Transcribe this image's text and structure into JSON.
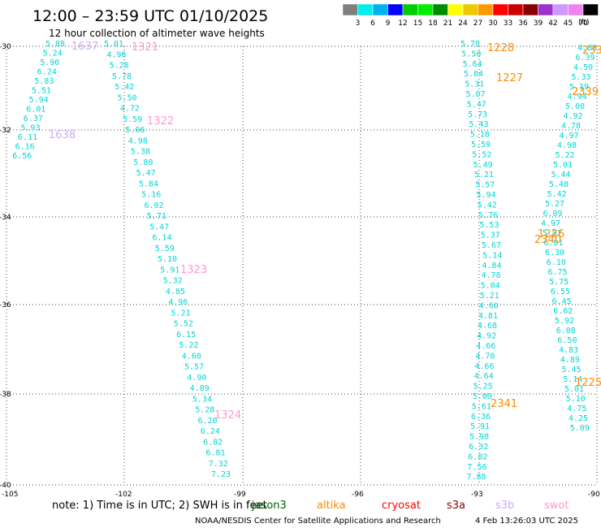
{
  "header": {
    "title": "12:00 – 23:59 UTC 01/10/2025",
    "subtitle": "12 hour collection of altimeter wave heights"
  },
  "scale": {
    "labels": [
      "3",
      "6",
      "9",
      "12",
      "15",
      "18",
      "21",
      "24",
      "27",
      "30",
      "33",
      "36",
      "39",
      "42",
      "45",
      "70"
    ],
    "unit": "(ft)",
    "colors": [
      "#7f7f7f",
      "#00eeee",
      "#00b2ee",
      "#0000ff",
      "#00cd00",
      "#00ee00",
      "#008b00",
      "#ffff00",
      "#eec900",
      "#ff9900",
      "#ff0000",
      "#cd0000",
      "#8b0000",
      "#9a32cd",
      "#cc99ff",
      "#ee82ee",
      "#000000"
    ]
  },
  "axes": {
    "lon_labels": [
      "-105",
      "-102",
      "-99",
      "-96",
      "-93",
      "-90"
    ],
    "lat_labels": [
      "-30",
      "-32",
      "-34",
      "-36",
      "-38",
      "-40"
    ]
  },
  "colors": {
    "value": "#00d5d5",
    "value_alt": "#1aa3e0",
    "jason": "#006400",
    "altika": "#ff8c00",
    "cryosat": "#ff0000",
    "s3a": "#8b0000",
    "s3b": "#ccaaff",
    "swot": "#ff99cc"
  },
  "tracks": [
    {
      "id": "A",
      "color": "#00d5d5",
      "values": [
        "5.88",
        "5.24",
        "5.90",
        "6.24",
        "5.83",
        "5.51",
        "5.94",
        "6.01",
        "6.37",
        "5.93",
        "6.11",
        "6.16",
        "6.56"
      ]
    },
    {
      "id": "B",
      "color": "#00d5d5",
      "values": [
        "5.01",
        "4.96",
        "5.28",
        "5.78",
        "5.42",
        "5.50",
        "4.72",
        "5.59",
        "5.06",
        "4.98",
        "5.38",
        "5.80",
        "5.47",
        "5.84",
        "5.16",
        "6.02",
        "5.71",
        "5.47",
        "6.14",
        "5.59",
        "5.10",
        "5.91",
        "5.32",
        "4.85",
        "4.96",
        "5.21",
        "5.52",
        "6.15",
        "5.22",
        "4.60",
        "5.57",
        "4.90",
        "4.89",
        "5.34",
        "5.28",
        "6.20",
        "6.24",
        "6.82",
        "6.81",
        "7.32",
        "7.23"
      ]
    },
    {
      "id": "C",
      "color": "#00d5d5",
      "values": [
        "5.78",
        "5.50",
        "5.64",
        "5.84",
        "5.31",
        "5.07",
        "5.47",
        "5.73",
        "5.43",
        "5.18",
        "5.59",
        "5.52",
        "5.49",
        "5.21",
        "5.57",
        "5.94",
        "5.42",
        "5.76",
        "5.53",
        "5.37",
        "5.67",
        "5.14",
        "4.84",
        "4.78",
        "5.04",
        "5.21",
        "4.60",
        "4.81",
        "4.68",
        "4.92",
        "4.66",
        "4.70",
        "4.66",
        "4.64",
        "5.25",
        "5.00",
        "5.61",
        "6.36",
        "5.91",
        "5.98",
        "6.32",
        "6.82",
        "7.56",
        "7.88"
      ]
    },
    {
      "id": "D",
      "color": "#00d5d5",
      "values": [
        "4.80",
        "6.39",
        "4.50",
        "5.33",
        "5.19",
        "4.94",
        "5.00",
        "4.92",
        "4.78",
        "4.97",
        "4.98",
        "5.22",
        "5.01",
        "5.44",
        "5.48",
        "5.42",
        "5.27",
        "6.09",
        "4.97",
        "5.87",
        "6.01",
        "6.30",
        "6.10",
        "6.75",
        "5.75",
        "6.55",
        "6.45",
        "6.62",
        "5.92",
        "6.08",
        "6.50",
        "4.83",
        "4.89",
        "5.45",
        "5.14",
        "5.01",
        "5.10",
        "4.75",
        "4.25",
        "5.09"
      ]
    }
  ],
  "pass_labels": [
    {
      "text": "1637",
      "sat": "s3b"
    },
    {
      "text": "1638",
      "sat": "s3b"
    },
    {
      "text": "1321",
      "sat": "swot"
    },
    {
      "text": "1322",
      "sat": "swot"
    },
    {
      "text": "1323",
      "sat": "swot"
    },
    {
      "text": "1324",
      "sat": "swot"
    },
    {
      "text": "1228",
      "sat": "altika"
    },
    {
      "text": "1227",
      "sat": "altika"
    },
    {
      "text": "233",
      "sat": "altika"
    },
    {
      "text": "2339",
      "sat": "altika"
    },
    {
      "text": "1226",
      "sat": "altika"
    },
    {
      "text": "2340",
      "sat": "altika"
    },
    {
      "text": "1225",
      "sat": "altika"
    },
    {
      "text": "2341",
      "sat": "altika"
    }
  ],
  "note": {
    "text": "note:  1) Time is in UTC; 2) SWH is in feet",
    "legend": [
      {
        "key": "jason",
        "label": "jason3"
      },
      {
        "key": "altika",
        "label": "altika"
      },
      {
        "key": "cryosat",
        "label": "cryosat"
      },
      {
        "key": "s3a",
        "label": "s3a"
      },
      {
        "key": "s3b",
        "label": "s3b"
      },
      {
        "key": "swot",
        "label": "swot"
      }
    ]
  },
  "footer": {
    "credit": "NOAA/NESDIS Center for Satellite Applications and Research",
    "timestamp": "4 Feb 13:26:03 UTC 2025"
  }
}
